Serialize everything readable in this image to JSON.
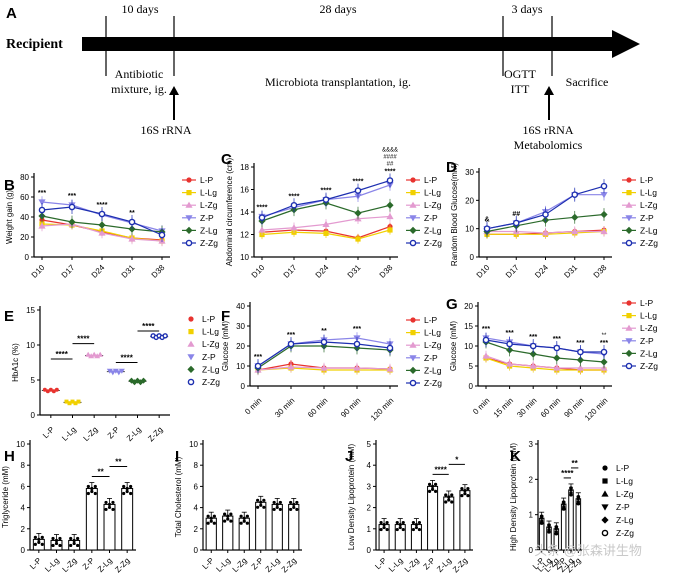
{
  "panel_letters": [
    "A",
    "B",
    "C",
    "D",
    "E",
    "F",
    "G",
    "H",
    "I",
    "J",
    "K"
  ],
  "timeline": {
    "recipient_label": "Recipient",
    "periods": [
      "10 days",
      "28 days",
      "3 days"
    ],
    "step_labels": [
      "Antibiotic",
      "mixture, ig.",
      "Microbiota transplantation, ig.",
      "OGTT",
      "ITT",
      "Sacrifice"
    ],
    "sample_labels": [
      "16S rRNA",
      "16S rRNA",
      "Metabolomics"
    ]
  },
  "group_labels": [
    "L-P",
    "L-Lg",
    "L-Zg",
    "Z-P",
    "Z-Lg",
    "Z-Zg"
  ],
  "colors": {
    "L-P": "#e8332f",
    "L-Lg": "#f1d000",
    "L-Zg": "#e39ad0",
    "Z-P": "#8a85e8",
    "Z-Lg": "#2b6a2b",
    "Z-Zg": "#1d2fb0",
    "bar_fill": "#ffffff",
    "bar_stroke": "#000000"
  },
  "watermark": "头条 @张森讲生物",
  "chart_data": [
    {
      "panel": "B",
      "type": "line",
      "ylabel": "Weight gain (g)",
      "categories": [
        "D10",
        "D17",
        "D24",
        "D31",
        "D38"
      ],
      "ylim": [
        0,
        80
      ],
      "yticks": [
        0,
        20,
        40,
        60,
        80
      ],
      "series": [
        {
          "name": "L-P",
          "values": [
            37,
            32,
            25,
            19,
            17
          ]
        },
        {
          "name": "L-Lg",
          "values": [
            33,
            32,
            26,
            19,
            16
          ]
        },
        {
          "name": "L-Zg",
          "values": [
            31,
            33,
            24,
            18,
            16
          ]
        },
        {
          "name": "Z-P",
          "values": [
            55,
            52,
            42,
            34,
            26
          ]
        },
        {
          "name": "Z-Lg",
          "values": [
            41,
            35,
            32,
            28,
            25
          ]
        },
        {
          "name": "Z-Zg",
          "values": [
            47,
            50,
            43,
            35,
            22
          ]
        }
      ],
      "annotations": [
        "***",
        "***",
        "****",
        "**"
      ]
    },
    {
      "panel": "C",
      "type": "line",
      "ylabel": "Abdominal circumference (cm)",
      "categories": [
        "D10",
        "D17",
        "D24",
        "D31",
        "D38"
      ],
      "ylim": [
        10,
        18
      ],
      "yticks": [
        10,
        12,
        14,
        16,
        18
      ],
      "series": [
        {
          "name": "L-P",
          "values": [
            12.2,
            12.4,
            12.3,
            11.7,
            12.7
          ]
        },
        {
          "name": "L-Lg",
          "values": [
            12.0,
            12.2,
            12.1,
            11.6,
            12.4
          ]
        },
        {
          "name": "L-Zg",
          "values": [
            12.4,
            12.6,
            12.9,
            13.4,
            13.6
          ]
        },
        {
          "name": "Z-P",
          "values": [
            13.6,
            14.4,
            15.1,
            15.4,
            16.4
          ]
        },
        {
          "name": "Z-Lg",
          "values": [
            13.2,
            14.2,
            14.8,
            13.9,
            14.6
          ]
        },
        {
          "name": "Z-Zg",
          "values": [
            13.5,
            14.6,
            15.1,
            15.9,
            16.8
          ]
        }
      ],
      "annotations": [
        "****",
        "****",
        "****",
        "****",
        "****",
        "##",
        "####",
        "&&&&"
      ]
    },
    {
      "panel": "D",
      "type": "line",
      "ylabel": "Random Blood Glucose(mM)",
      "categories": [
        "D10",
        "D17",
        "D24",
        "D31",
        "D38"
      ],
      "ylim": [
        0,
        30
      ],
      "yticks": [
        0,
        10,
        20,
        30
      ],
      "series": [
        {
          "name": "L-P",
          "values": [
            8,
            8,
            8.5,
            9,
            9.5
          ]
        },
        {
          "name": "L-Lg",
          "values": [
            8,
            8,
            8,
            8.5,
            9
          ]
        },
        {
          "name": "L-Zg",
          "values": [
            9,
            9,
            8.5,
            9,
            9
          ]
        },
        {
          "name": "Z-P",
          "values": [
            10,
            12,
            16,
            22,
            22
          ]
        },
        {
          "name": "Z-Lg",
          "values": [
            9,
            11,
            13,
            14,
            15
          ]
        },
        {
          "name": "Z-Zg",
          "values": [
            10,
            12,
            15,
            22,
            25
          ]
        }
      ],
      "annotations": [
        "&",
        "##"
      ]
    },
    {
      "panel": "E",
      "type": "scatter",
      "ylabel": "HbA1c (%)",
      "categories": [
        "L-P",
        "L-Lg",
        "L-Zg",
        "Z-P",
        "Z-Lg",
        "Z-Zg"
      ],
      "ylim": [
        0,
        15
      ],
      "yticks": [
        0,
        5,
        10,
        15
      ],
      "values": [
        3.5,
        1.8,
        8.5,
        6.2,
        4.8,
        11.2
      ],
      "annotations": [
        "****",
        "****",
        "****",
        "****"
      ]
    },
    {
      "panel": "F",
      "type": "line",
      "ylabel": "Glucose (mM)",
      "categories": [
        "0 min",
        "30 min",
        "60 min",
        "90 min",
        "120 min"
      ],
      "ylim": [
        0,
        40
      ],
      "yticks": [
        0,
        10,
        20,
        30,
        40
      ],
      "series": [
        {
          "name": "L-P",
          "values": [
            8,
            11,
            9,
            9,
            8.5
          ]
        },
        {
          "name": "L-Lg",
          "values": [
            8,
            9,
            8,
            8,
            8
          ]
        },
        {
          "name": "L-Zg",
          "values": [
            8,
            9.5,
            9,
            9,
            8.5
          ]
        },
        {
          "name": "Z-P",
          "values": [
            10,
            21,
            23,
            24,
            21
          ]
        },
        {
          "name": "Z-Lg",
          "values": [
            9,
            20,
            20,
            19,
            18
          ]
        },
        {
          "name": "Z-Zg",
          "values": [
            10,
            21,
            22,
            21,
            19
          ]
        }
      ],
      "annotations": [
        "***",
        "***",
        "**",
        "***"
      ]
    },
    {
      "panel": "G",
      "type": "line",
      "ylabel": "Glucose (mM)",
      "categories": [
        "0 min",
        "15 min",
        "30 min",
        "60 min",
        "90 min",
        "120 min"
      ],
      "ylim": [
        0,
        20
      ],
      "yticks": [
        0,
        5,
        10,
        15,
        20
      ],
      "series": [
        {
          "name": "L-P",
          "values": [
            7,
            5.5,
            5,
            4.5,
            4,
            4
          ]
        },
        {
          "name": "L-Lg",
          "values": [
            7,
            5,
            4.5,
            4,
            4,
            4
          ]
        },
        {
          "name": "L-Zg",
          "values": [
            7.5,
            5.5,
            5,
            4.5,
            4.5,
            4.5
          ]
        },
        {
          "name": "Z-P",
          "values": [
            12,
            11,
            10,
            9.5,
            8.5,
            8
          ]
        },
        {
          "name": "Z-Lg",
          "values": [
            11,
            9,
            8,
            7,
            6.5,
            6
          ]
        },
        {
          "name": "Z-Zg",
          "values": [
            11.5,
            10.5,
            10,
            9.5,
            8.5,
            8.5
          ]
        }
      ],
      "annotations": [
        "***",
        "***",
        "***",
        "***",
        "***",
        "***",
        "**"
      ]
    },
    {
      "panel": "H",
      "type": "bar",
      "ylabel": "Triglyceride (mM)",
      "categories": [
        "L-P",
        "L-Lg",
        "L-Zg",
        "Z-P",
        "Z-Lg",
        "Z-Zg"
      ],
      "ylim": [
        0,
        10
      ],
      "yticks": [
        0,
        2,
        4,
        6,
        8,
        10
      ],
      "values": [
        1.0,
        0.9,
        0.9,
        5.8,
        4.3,
        5.8
      ],
      "annotations": [
        "**",
        "**"
      ]
    },
    {
      "panel": "I",
      "type": "bar",
      "ylabel": "Total Cholesterol (mM)",
      "categories": [
        "L-P",
        "L-Lg",
        "L-Zg",
        "Z-P",
        "Z-Lg",
        "Z-Zg"
      ],
      "ylim": [
        0,
        10
      ],
      "yticks": [
        0,
        2,
        4,
        6,
        8,
        10
      ],
      "values": [
        3.0,
        3.2,
        3.0,
        4.5,
        4.3,
        4.3
      ],
      "annotations": []
    },
    {
      "panel": "J",
      "type": "bar",
      "ylabel": "Low Density Lipoprotein (mM)",
      "categories": [
        "L-P",
        "L-Lg",
        "L-Zg",
        "Z-P",
        "Z-Lg",
        "Z-Zg"
      ],
      "ylim": [
        0,
        5
      ],
      "yticks": [
        0,
        1,
        2,
        3,
        4,
        5
      ],
      "values": [
        1.2,
        1.2,
        1.2,
        3.0,
        2.5,
        2.8
      ],
      "annotations": [
        "****",
        "*"
      ]
    },
    {
      "panel": "K",
      "type": "bar",
      "ylabel": "High Density Lipoprotein (mM)",
      "categories": [
        "L-P",
        "L-Lg",
        "L-Zg",
        "Z-P",
        "Z-Lg",
        "Z-Zg"
      ],
      "ylim": [
        0,
        3
      ],
      "yticks": [
        0,
        1,
        2,
        3
      ],
      "values": [
        0.9,
        0.65,
        0.6,
        1.3,
        1.7,
        1.45
      ],
      "annotations": [
        "****",
        "**"
      ]
    }
  ]
}
